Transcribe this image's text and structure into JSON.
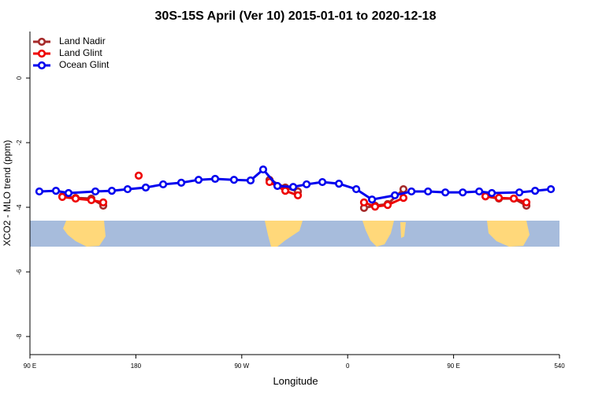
{
  "chart_data": {
    "type": "line",
    "title": "30S-15S April (Ver 10)   2015-01-01 to 2020-12-18",
    "x_label": "Longitude",
    "y_label": "XCO2 - MLO trend (ppm)",
    "xlim": [
      90,
      540
    ],
    "ylim": [
      -8.56,
      1.44
    ],
    "xticks": [
      {
        "value": 90,
        "label": "90 E"
      },
      180,
      {
        "value": 270,
        "label": "90 W"
      },
      {
        "value": 360,
        "label": "0"
      },
      {
        "value": 450,
        "label": "90 E"
      },
      540
    ],
    "yticks": [
      0,
      -2,
      -4,
      -6,
      -8
    ],
    "legend": "top-left",
    "series": [
      {
        "name": "Land Nadir",
        "color": "#a52a2a",
        "x": [
          117.5,
          128.8,
          142.2,
          152.3,
          null,
          293.6,
          307.0,
          317.7,
          null,
          373.9,
          383.3,
          394.0,
          407.4,
          null,
          477.1,
          488.5,
          501.2,
          511.9
        ],
        "values": [
          -3.66,
          -3.71,
          -3.73,
          -3.95,
          null,
          -3.15,
          -3.39,
          -3.51,
          null,
          -4.02,
          -3.95,
          -3.9,
          -3.44,
          null,
          -3.66,
          -3.73,
          -3.73,
          -3.95
        ]
      },
      {
        "name": "Land Glint",
        "color": "#ee0000",
        "x": [
          117.5,
          128.8,
          142.2,
          152.3,
          null,
          182.4,
          null,
          293.6,
          307.0,
          317.7,
          null,
          373.9,
          383.3,
          394.0,
          407.4,
          null,
          477.1,
          488.5,
          501.2,
          511.9
        ],
        "values": [
          -3.68,
          -3.73,
          -3.78,
          -3.85,
          null,
          -3.02,
          null,
          -3.22,
          -3.49,
          -3.63,
          null,
          -3.85,
          -3.98,
          -3.93,
          -3.71,
          null,
          -3.66,
          -3.71,
          -3.73,
          -3.85
        ]
      },
      {
        "name": "Ocean Glint",
        "color": "#0000ee",
        "x": [
          98.0,
          112.1,
          122.8,
          145.6,
          159.6,
          173.0,
          188.4,
          203.2,
          218.6,
          233.3,
          247.4,
          263.4,
          277.5,
          288.2,
          300.3,
          313.7,
          325.1,
          338.5,
          352.6,
          367.3,
          380.7,
          400.1,
          414.2,
          428.3,
          443.0,
          457.8,
          471.8,
          482.5,
          505.9,
          519.3,
          532.7
        ],
        "values": [
          -3.51,
          -3.49,
          -3.56,
          -3.51,
          -3.49,
          -3.44,
          -3.39,
          -3.29,
          -3.24,
          -3.15,
          -3.12,
          -3.15,
          -3.17,
          -2.83,
          -3.34,
          -3.37,
          -3.29,
          -3.22,
          -3.27,
          -3.44,
          -3.76,
          -3.63,
          -3.51,
          -3.51,
          -3.54,
          -3.54,
          -3.51,
          -3.56,
          -3.54,
          -3.49,
          -3.44
        ]
      }
    ]
  }
}
